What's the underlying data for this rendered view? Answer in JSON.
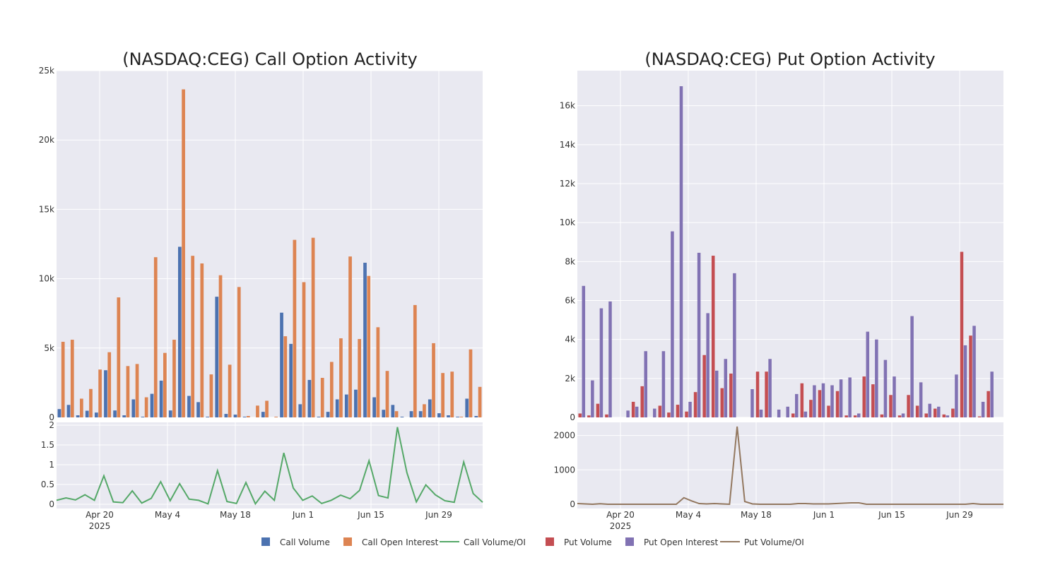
{
  "chart_data": [
    {
      "type": "bar",
      "title": "(NASDAQ:CEG) Call Option Activity",
      "x_axis": {
        "ticks": [
          "Apr 20",
          "May 4",
          "May 18",
          "Jun 1",
          "Jun 15",
          "Jun 29"
        ],
        "subtitle": "2025"
      },
      "y_axis": {
        "range": [
          0,
          25000
        ],
        "ticks": [
          "0",
          "5k",
          "10k",
          "15k",
          "20k",
          "25k"
        ]
      },
      "series": [
        {
          "name": "Call Volume",
          "color": "#4c72b0",
          "values": [
            600,
            900,
            150,
            480,
            350,
            3400,
            500,
            150,
            1300,
            50,
            1700,
            2650,
            500,
            12300,
            1550,
            1100,
            50,
            8700,
            250,
            200,
            50,
            0,
            400,
            0,
            7550,
            5300,
            950,
            2700,
            50,
            400,
            1300,
            1650,
            2000,
            11150,
            1450,
            550,
            900,
            50,
            450,
            450,
            1300,
            300,
            150,
            50,
            1350,
            100
          ]
        },
        {
          "name": "Call Open Interest",
          "color": "#dd8452",
          "values": [
            5450,
            5600,
            1350,
            2050,
            3450,
            4700,
            8650,
            3700,
            3850,
            1450,
            11550,
            4650,
            5600,
            23650,
            11650,
            11100,
            3100,
            10250,
            3800,
            9400,
            100,
            850,
            1200,
            50,
            5850,
            12800,
            9750,
            12950,
            2850,
            4000,
            5700,
            11600,
            5650,
            10200,
            6500,
            3350,
            450,
            0,
            8100,
            950,
            5350,
            3200,
            3300,
            50,
            4900,
            2200
          ]
        }
      ]
    },
    {
      "type": "line",
      "name": "Call Volume/OI",
      "color": "#55a868",
      "x_axis": {
        "ticks": [
          "Apr 20",
          "May 4",
          "May 18",
          "Jun 1",
          "Jun 15",
          "Jun 29"
        ],
        "subtitle": "2025"
      },
      "y_axis": {
        "range": [
          0,
          2
        ],
        "ticks": [
          "0",
          "0.5",
          "1",
          "1.5",
          "2"
        ]
      },
      "values": [
        0.1,
        0.16,
        0.11,
        0.24,
        0.1,
        0.72,
        0.06,
        0.04,
        0.34,
        0.03,
        0.15,
        0.57,
        0.09,
        0.52,
        0.13,
        0.1,
        0.01,
        0.85,
        0.07,
        0.02,
        0.55,
        0.01,
        0.33,
        0.1,
        1.3,
        0.41,
        0.1,
        0.21,
        0.02,
        0.1,
        0.23,
        0.14,
        0.35,
        1.1,
        0.22,
        0.16,
        1.95,
        0.8,
        0.06,
        0.49,
        0.24,
        0.09,
        0.05,
        1.07,
        0.27,
        0.05
      ]
    },
    {
      "type": "bar",
      "title": "(NASDAQ:CEG) Put Option Activity",
      "x_axis": {
        "ticks": [
          "Apr 20",
          "May 4",
          "May 18",
          "Jun 1",
          "Jun 15",
          "Jun 29"
        ],
        "subtitle": "2025"
      },
      "y_axis": {
        "range": [
          0,
          17800
        ],
        "ticks": [
          "0",
          "2k",
          "4k",
          "6k",
          "8k",
          "10k",
          "12k",
          "14k",
          "16k"
        ]
      },
      "series": [
        {
          "name": "Put Volume",
          "color": "#c44e52",
          "values": [
            200,
            100,
            700,
            150,
            0,
            0,
            800,
            1600,
            0,
            600,
            250,
            650,
            300,
            1300,
            3200,
            8300,
            1500,
            2250,
            0,
            0,
            2350,
            2350,
            0,
            0,
            200,
            1750,
            900,
            1400,
            600,
            1350,
            100,
            100,
            2100,
            1700,
            150,
            1150,
            100,
            1150,
            600,
            200,
            450,
            150,
            450,
            8500,
            4200,
            50,
            1350,
            0
          ]
        },
        {
          "name": "Put Open Interest",
          "color": "#8172b3",
          "values": [
            6750,
            1900,
            5600,
            5950,
            0,
            350,
            550,
            3400,
            450,
            3400,
            9550,
            17000,
            800,
            8450,
            5350,
            2400,
            3000,
            7400,
            0,
            1450,
            400,
            3000,
            400,
            550,
            1200,
            300,
            1650,
            1750,
            1650,
            1950,
            2050,
            200,
            4400,
            4000,
            2950,
            2100,
            200,
            5200,
            1800,
            700,
            550,
            100,
            2200,
            3700,
            4700,
            800,
            2350,
            0
          ]
        }
      ]
    },
    {
      "type": "line",
      "name": "Put Volume/OI",
      "color": "#937860",
      "x_axis": {
        "ticks": [
          "Apr 20",
          "May 4",
          "May 18",
          "Jun 1",
          "Jun 15",
          "Jun 29"
        ],
        "subtitle": "2025"
      },
      "y_axis": {
        "range": [
          0,
          2300
        ],
        "ticks": [
          "0",
          "1000",
          "2000"
        ]
      },
      "values": [
        20,
        10,
        0,
        15,
        0,
        0,
        0,
        0,
        0,
        0,
        0,
        0,
        0,
        0,
        190,
        100,
        20,
        10,
        20,
        10,
        0,
        2260,
        80,
        10,
        0,
        0,
        0,
        0,
        0,
        20,
        20,
        10,
        10,
        10,
        20,
        30,
        40,
        40,
        0,
        0,
        0,
        0,
        0,
        0,
        0,
        0,
        0,
        0,
        0,
        0,
        0,
        0,
        20,
        0,
        0,
        0,
        0
      ]
    }
  ],
  "legend": [
    {
      "label": "Call Volume",
      "kind": "square",
      "color": "#4c72b0"
    },
    {
      "label": "Call Open Interest",
      "kind": "square",
      "color": "#dd8452"
    },
    {
      "label": "Call Volume/OI",
      "kind": "line",
      "color": "#55a868"
    },
    {
      "label": "Put Volume",
      "kind": "square",
      "color": "#c44e52"
    },
    {
      "label": "Put Open Interest",
      "kind": "square",
      "color": "#8172b3"
    },
    {
      "label": "Put Volume/OI",
      "kind": "line",
      "color": "#937860"
    }
  ]
}
